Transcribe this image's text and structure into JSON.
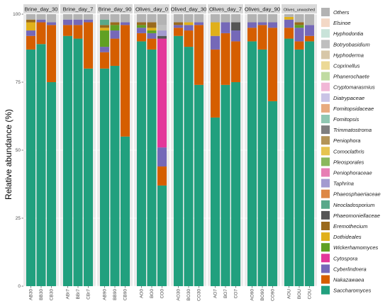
{
  "chart_data": {
    "type": "bar",
    "stacked": true,
    "faceted": true,
    "ylabel": "Relative abundance (%)",
    "xlabel": "",
    "ylim": [
      0,
      100
    ],
    "yticks": [
      0,
      25,
      50,
      75,
      100
    ],
    "legend_position": "right",
    "taxa": [
      {
        "name": "Saccharomyces",
        "color": "#21a07e"
      },
      {
        "name": "Nakazawaea",
        "color": "#d55e00"
      },
      {
        "name": "Cyberlindnera",
        "color": "#7568b8"
      },
      {
        "name": "Cytospora",
        "color": "#e3379a"
      },
      {
        "name": "Wickerhamomyces",
        "color": "#60a023"
      },
      {
        "name": "Dothideales",
        "color": "#e0b01a"
      },
      {
        "name": "Eremothecium",
        "color": "#9a6a1c"
      },
      {
        "name": "Phaeomoniellaceae",
        "color": "#555555"
      },
      {
        "name": "Neocladosporium",
        "color": "#59a88a"
      },
      {
        "name": "Phaeosphaeriaceae",
        "color": "#dd8846"
      },
      {
        "name": "Taphrina",
        "color": "#a39bd0"
      },
      {
        "name": "Peniophoraceae",
        "color": "#e77eb4"
      },
      {
        "name": "Pleosporales",
        "color": "#8ab85c"
      },
      {
        "name": "Comoclathris",
        "color": "#e6c44f"
      },
      {
        "name": "Peniophora",
        "color": "#b39457"
      },
      {
        "name": "Trimmatostroma",
        "color": "#7f7f7f"
      },
      {
        "name": "Fomitopsis",
        "color": "#90c7b2"
      },
      {
        "name": "Fomitopsidaceae",
        "color": "#e8ab7f"
      },
      {
        "name": "Diatrypaceae",
        "color": "#cac4e6"
      },
      {
        "name": "Cryptomarasmius",
        "color": "#f1b7d6"
      },
      {
        "name": "Phanerochaete",
        "color": "#c0dba2"
      },
      {
        "name": "Coprinellus",
        "color": "#ecd996"
      },
      {
        "name": "Hyphoderma",
        "color": "#d7c7a8"
      },
      {
        "name": "Botryobasidium",
        "color": "#bfbfbf"
      },
      {
        "name": "Hyphodontia",
        "color": "#c9e3d9"
      },
      {
        "name": "Elsinoe",
        "color": "#f3d8c6"
      },
      {
        "name": "Others",
        "color": "#b3b3b3"
      }
    ],
    "legend_order_top_to_bottom": [
      "Others",
      "Elsinoe",
      "Hyphodontia",
      "Botryobasidium",
      "Hyphoderma",
      "Coprinellus",
      "Phanerochaete",
      "Cryptomarasmius",
      "Diatrypaceae",
      "Fomitopsidaceae",
      "Fomitopsis",
      "Trimmatostroma",
      "Peniophora",
      "Comoclathris",
      "Pleosporales",
      "Peniophoraceae",
      "Taphrina",
      "Phaeosphaeriaceae",
      "Neocladosporium",
      "Phaeomoniellaceae",
      "Eremothecium",
      "Dothideales",
      "Wickerhamomyces",
      "Cytospora",
      "Cyberlindnera",
      "Nakazawaea",
      "Saccharomyces"
    ],
    "facets": [
      {
        "title": "Brine_day_30",
        "bars": [
          {
            "label": "AB30",
            "values": {
              "Saccharomyces": 87,
              "Nakazawaea": 5,
              "Cyberlindnera": 2,
              "Dothideales": 3,
              "Eremothecium": 1,
              "Others": 2
            }
          },
          {
            "label": "BB30",
            "values": {
              "Saccharomyces": 89,
              "Nakazawaea": 8,
              "Cyberlindnera": 1,
              "Others": 2
            }
          },
          {
            "label": "CB30",
            "values": {
              "Saccharomyces": 75,
              "Nakazawaea": 21,
              "Cyberlindnera": 1,
              "Others": 3
            }
          }
        ]
      },
      {
        "title": "Brine_day_7",
        "bars": [
          {
            "label": "ABr7",
            "values": {
              "Saccharomyces": 92,
              "Nakazawaea": 4,
              "Cyberlindnera": 2,
              "Others": 2
            }
          },
          {
            "label": "BBr7",
            "values": {
              "Saccharomyces": 91,
              "Nakazawaea": 5,
              "Cyberlindnera": 2,
              "Others": 2
            }
          },
          {
            "label": "CBr7",
            "values": {
              "Saccharomyces": 80,
              "Nakazawaea": 17,
              "Cyberlindnera": 1,
              "Others": 2
            }
          }
        ]
      },
      {
        "title": "Brine_day_90",
        "bars": [
          {
            "label": "AB90",
            "values": {
              "Saccharomyces": 80,
              "Nakazawaea": 6,
              "Cyberlindnera": 2,
              "Wickerhamomyces": 6,
              "Dothideales": 1,
              "Eremothecium": 1,
              "Neocladosporium": 2,
              "Others": 2
            }
          },
          {
            "label": "BB90",
            "values": {
              "Saccharomyces": 81,
              "Nakazawaea": 10,
              "Cyberlindnera": 3,
              "Wickerhamomyces": 2,
              "Eremothecium": 1,
              "Others": 3
            }
          },
          {
            "label": "CB90",
            "values": {
              "Saccharomyces": 55,
              "Nakazawaea": 41,
              "Cyberlindnera": 1,
              "Others": 3
            }
          }
        ]
      },
      {
        "title": "Olives_day_0",
        "bars": [
          {
            "label": "AO0",
            "values": {
              "Saccharomyces": 90,
              "Nakazawaea": 3,
              "Cyberlindnera": 2,
              "Wickerhamomyces": 1,
              "Eremothecium": 1,
              "Others": 3
            }
          },
          {
            "label": "BO0",
            "values": {
              "Saccharomyces": 87,
              "Nakazawaea": 4,
              "Cyberlindnera": 2,
              "Wickerhamomyces": 1,
              "Dothideales": 1,
              "Eremothecium": 2,
              "Others": 3
            }
          },
          {
            "label": "CO0",
            "values": {
              "Saccharomyces": 37,
              "Nakazawaea": 7,
              "Cyberlindnera": 7,
              "Cytospora": 40,
              "Taphrina": 2,
              "Phaeomoniellaceae": 1,
              "Botryobasidium": 2,
              "Others": 4
            }
          }
        ]
      },
      {
        "title": "Olived_day_30",
        "bars": [
          {
            "label": "AO30",
            "values": {
              "Saccharomyces": 92,
              "Nakazawaea": 3,
              "Cyberlindnera": 1,
              "Eremothecium": 1,
              "Others": 3
            }
          },
          {
            "label": "BO30",
            "values": {
              "Saccharomyces": 88,
              "Nakazawaea": 6,
              "Cyberlindnera": 2,
              "Dothideales": 1,
              "Others": 3
            }
          },
          {
            "label": "CO30",
            "values": {
              "Saccharomyces": 74,
              "Nakazawaea": 22,
              "Cyberlindnera": 1,
              "Others": 3
            }
          }
        ]
      },
      {
        "title": "Olives_day_7",
        "bars": [
          {
            "label": "AO7",
            "values": {
              "Saccharomyces": 62,
              "Nakazawaea": 25,
              "Cyberlindnera": 5,
              "Dothideales": 5,
              "Others": 3
            }
          },
          {
            "label": "BO7",
            "values": {
              "Saccharomyces": 74,
              "Nakazawaea": 19,
              "Cyberlindnera": 4,
              "Others": 3
            }
          },
          {
            "label": "CO7",
            "values": {
              "Saccharomyces": 75,
              "Nakazawaea": 15,
              "Cyberlindnera": 4,
              "Phaeomoniellaceae": 3,
              "Others": 3
            }
          }
        ]
      },
      {
        "title": "Olives_day_90",
        "bars": [
          {
            "label": "AO90",
            "values": {
              "Saccharomyces": 90,
              "Nakazawaea": 5,
              "Cyberlindnera": 2,
              "Others": 3
            }
          },
          {
            "label": "BO90",
            "values": {
              "Saccharomyces": 87,
              "Nakazawaea": 9,
              "Cyberlindnera": 1,
              "Others": 3
            }
          },
          {
            "label": "CO90",
            "values": {
              "Saccharomyces": 68,
              "Nakazawaea": 27,
              "Cyberlindnera": 2,
              "Others": 3
            }
          }
        ]
      },
      {
        "title": "Olives_unwashed",
        "bars": [
          {
            "label": "AOU",
            "values": {
              "Saccharomyces": 91,
              "Nakazawaea": 4,
              "Cyberlindnera": 3,
              "Dothideales": 1,
              "Others": 1
            }
          },
          {
            "label": "BOU",
            "values": {
              "Saccharomyces": 87,
              "Nakazawaea": 3,
              "Cyberlindnera": 5,
              "Eremothecium": 1,
              "Wickerhamomyces": 1,
              "Others": 3
            }
          },
          {
            "label": "COU",
            "values": {
              "Saccharomyces": 90,
              "Nakazawaea": 2,
              "Cyberlindnera": 4,
              "Others": 4
            }
          }
        ]
      }
    ]
  }
}
